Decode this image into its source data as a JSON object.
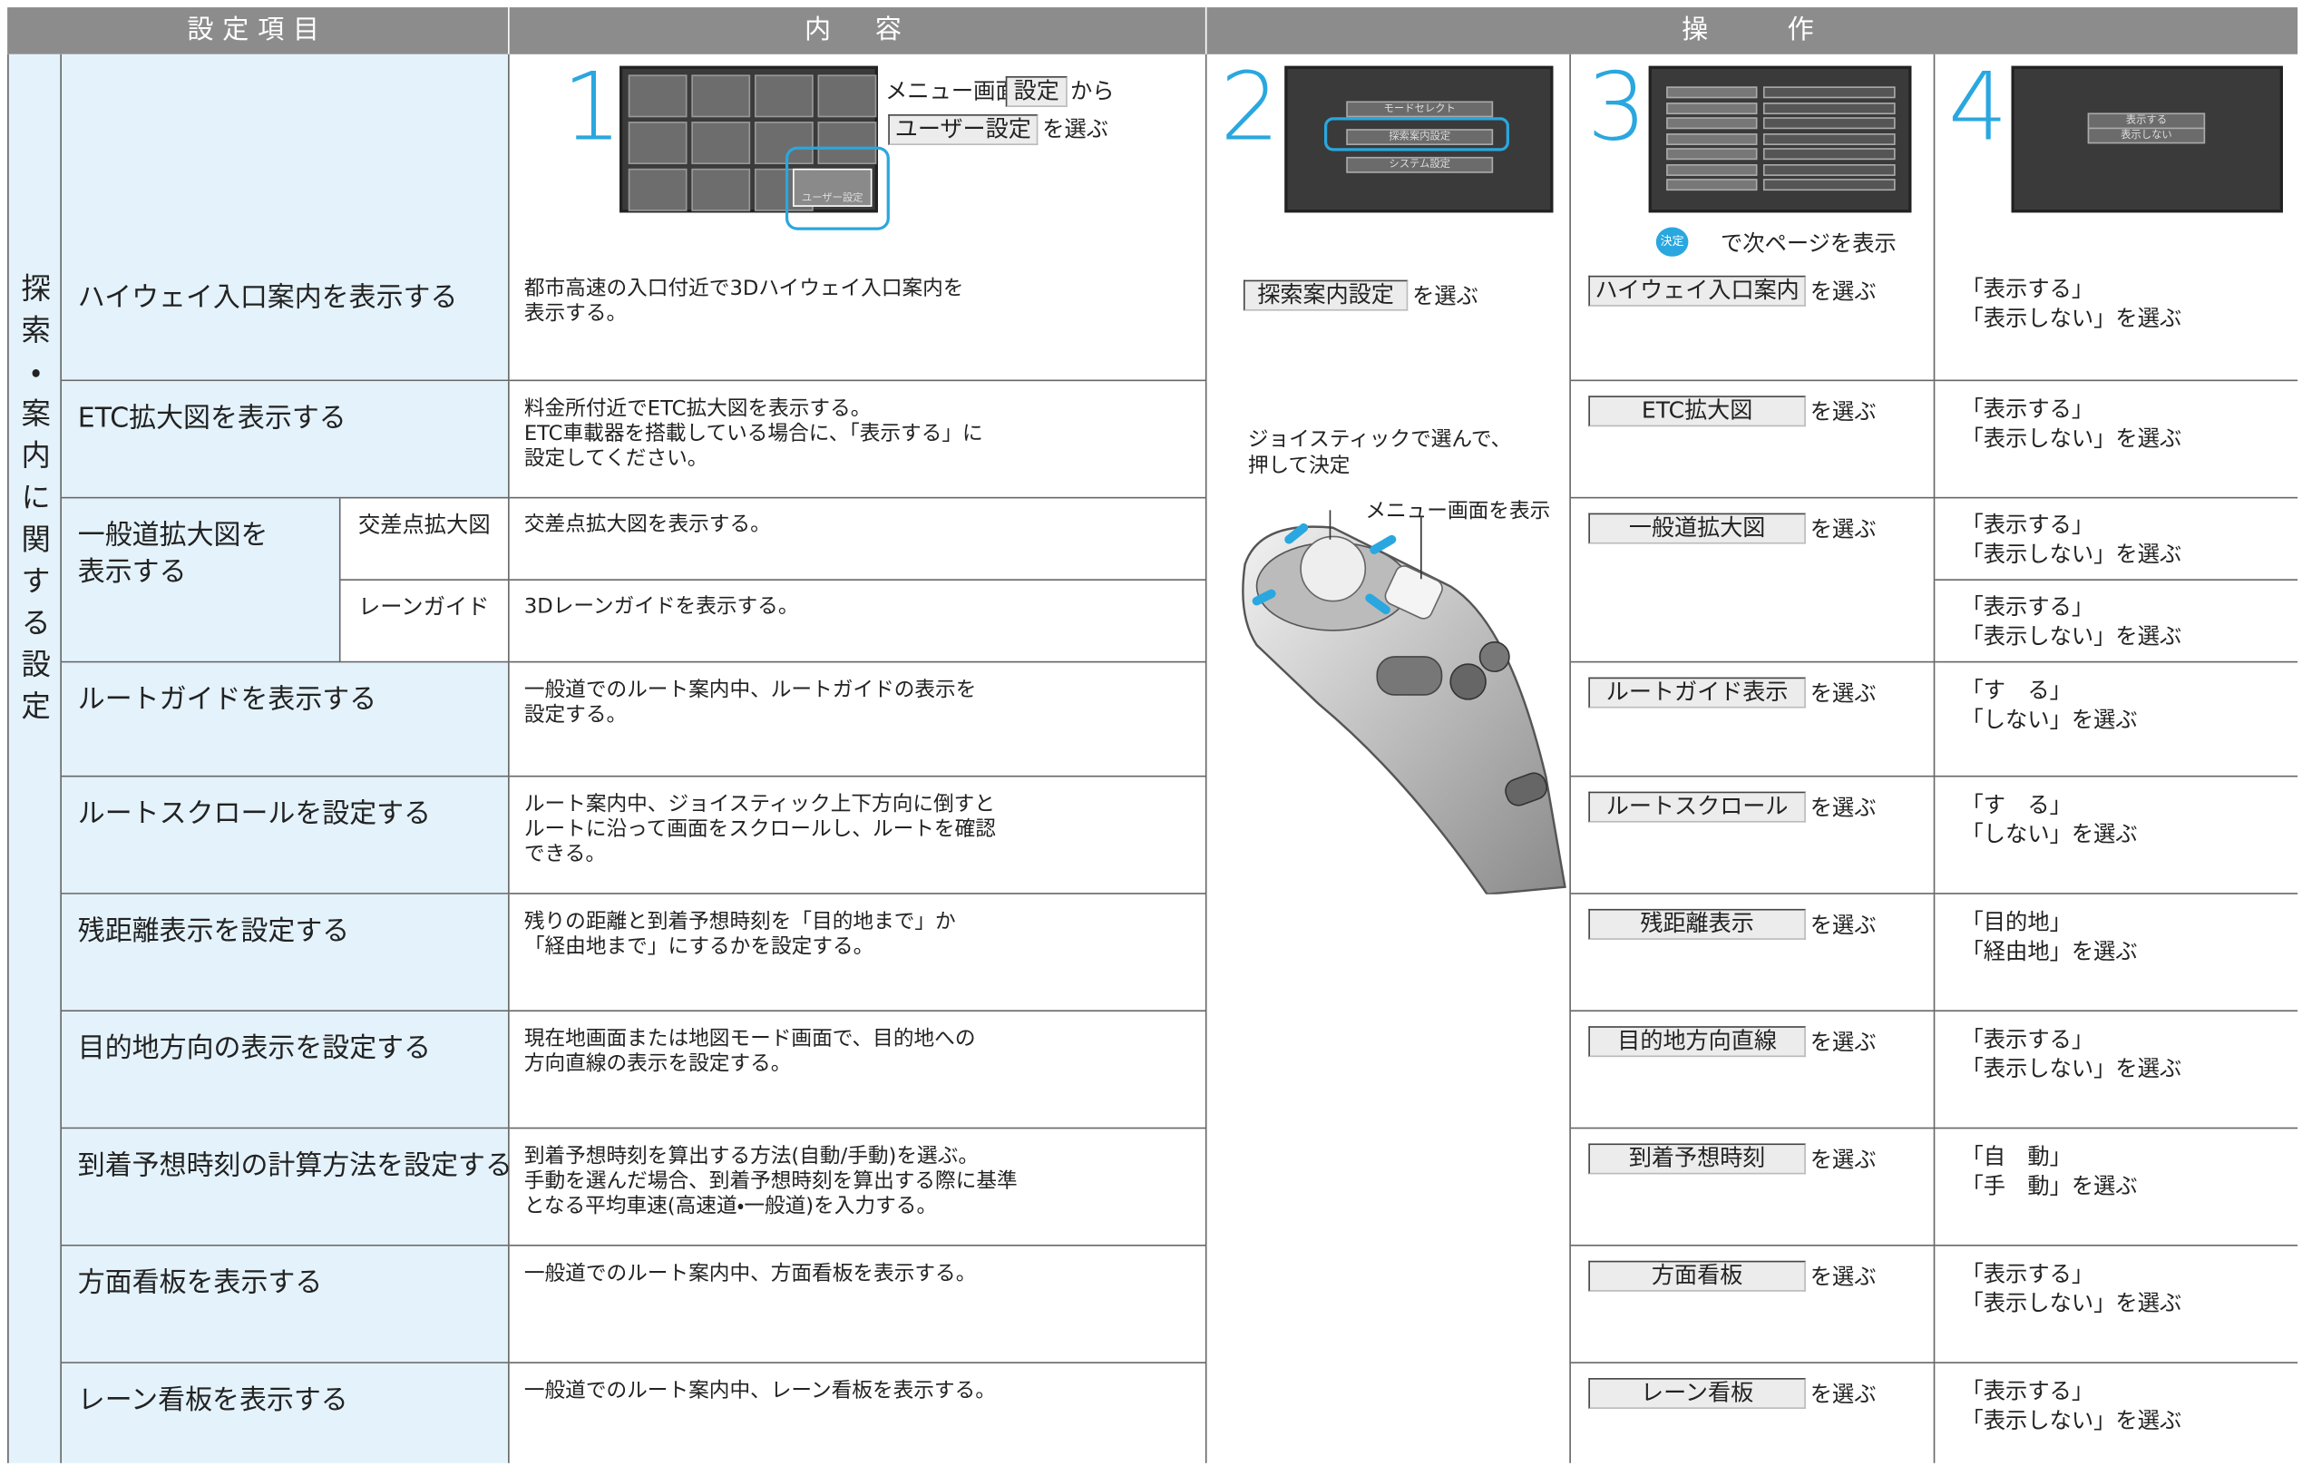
{
  "header": {
    "item": "設定項目",
    "content": "内　容",
    "operation": "操　　作"
  },
  "category": "探索・案内に関する設定",
  "select_suffix": "を選ぶ",
  "steps": {
    "numbers": [
      "1",
      "2",
      "3",
      "4"
    ],
    "step1": {
      "line1_before": "メニュー画面",
      "line1_button": "設定",
      "line1_after": "から",
      "line2_button": "ユーザー設定",
      "screen_highlight": "ユーザー設定"
    },
    "step2": {
      "button": "探索案内設定",
      "screen_items": [
        "モードセレクト",
        "探索案内設定",
        "システム設定"
      ]
    },
    "step3": {
      "icon": "決定",
      "caption": "で次ページを表示"
    },
    "step4": {
      "screen_items": [
        "表示する",
        "表示しない"
      ]
    }
  },
  "joystick": {
    "select_note": [
      "ジョイスティックで選んで、",
      "押して決定"
    ],
    "menu_note": "メニュー画面を表示"
  },
  "rows": [
    {
      "item": [
        "ハイウェイ入口案内を表示する"
      ],
      "content": [
        "都市高速の入口付近で3Dハイウェイ入口案内を",
        "表示する。"
      ],
      "button": "ハイウェイ入口案内",
      "options": [
        "「表示する」",
        "「表示しない」を選ぶ"
      ]
    },
    {
      "item": [
        "ETC拡大図を表示する"
      ],
      "content": [
        "料金所付近でETC拡大図を表示する。",
        "ETC車載器を搭載している場合に、「表示する」に",
        "設定してください。"
      ],
      "button": "ETC拡大図",
      "options": [
        "「表示する」",
        "「表示しない」を選ぶ"
      ]
    },
    {
      "item": [
        "一般道拡大図を",
        "表示する"
      ],
      "button": "一般道拡大図",
      "subrows": [
        {
          "label": "交差点拡大図",
          "content": [
            "交差点拡大図を表示する。"
          ],
          "options": [
            "「表示する」",
            "「表示しない」を選ぶ"
          ]
        },
        {
          "label": "レーンガイド",
          "content": [
            "3Dレーンガイドを表示する。"
          ],
          "options": [
            "「表示する」",
            "「表示しない」を選ぶ"
          ]
        }
      ]
    },
    {
      "item": [
        "ルートガイドを表示する"
      ],
      "content": [
        "一般道でのルート案内中、ルートガイドの表示を",
        "設定する。"
      ],
      "button": "ルートガイド表示",
      "options": [
        "「す　る」",
        "「しない」を選ぶ"
      ]
    },
    {
      "item": [
        "ルートスクロールを設定する"
      ],
      "content": [
        "ルート案内中、ジョイスティック上下方向に倒すと",
        "ルートに沿って画面をスクロールし、ルートを確認",
        "できる。"
      ],
      "button": "ルートスクロール",
      "options": [
        "「す　る」",
        "「しない」を選ぶ"
      ]
    },
    {
      "item": [
        "残距離表示を設定する"
      ],
      "content": [
        "残りの距離と到着予想時刻を「目的地まで」か",
        "「経由地まで」にするかを設定する。"
      ],
      "button": "残距離表示",
      "options": [
        "「目的地」",
        "「経由地」を選ぶ"
      ]
    },
    {
      "item": [
        "目的地方向の表示を設定する"
      ],
      "content": [
        "現在地画面または地図モード画面で、目的地への",
        "方向直線の表示を設定する。"
      ],
      "button": "目的地方向直線",
      "options": [
        "「表示する」",
        "「表示しない」を選ぶ"
      ]
    },
    {
      "item": [
        "到着予想時刻の計算方法を設定する"
      ],
      "content": [
        "到着予想時刻を算出する方法(自動/手動)を選ぶ。",
        "手動を選んだ場合、到着予想時刻を算出する際に基準",
        "となる平均車速(高速道・一般道)を入力する。"
      ],
      "button": "到着予想時刻",
      "options": [
        "「自　動」",
        "「手　動」を選ぶ"
      ]
    },
    {
      "item": [
        "方面看板を表示する"
      ],
      "content": [
        "一般道でのルート案内中、方面看板を表示する。"
      ],
      "button": "方面看板",
      "options": [
        "「表示する」",
        "「表示しない」を選ぶ"
      ]
    },
    {
      "item": [
        "レーン看板を表示する"
      ],
      "content": [
        "一般道でのルート案内中、レーン看板を表示する。"
      ],
      "button": "レーン看板",
      "options": [
        "「表示する」",
        "「表示しない」を選ぶ"
      ]
    }
  ]
}
